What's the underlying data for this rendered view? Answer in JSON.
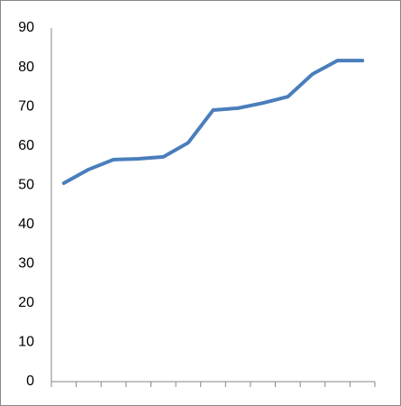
{
  "chart_data": {
    "type": "line",
    "categories": [
      null,
      null,
      null,
      null,
      null,
      null,
      null,
      null,
      null,
      null,
      null,
      null,
      null
    ],
    "series": [
      {
        "name": null,
        "color": "#4a7ebb",
        "values": [
          50.5,
          54,
          56.5,
          56.7,
          57.2,
          60.8,
          69.1,
          69.6,
          70.9,
          72.5,
          78.3,
          81.7,
          81.7
        ]
      }
    ],
    "ylim": [
      0,
      90
    ],
    "yticks": [
      0,
      10,
      20,
      30,
      40,
      50,
      60,
      70,
      80,
      90
    ],
    "grid": false
  }
}
